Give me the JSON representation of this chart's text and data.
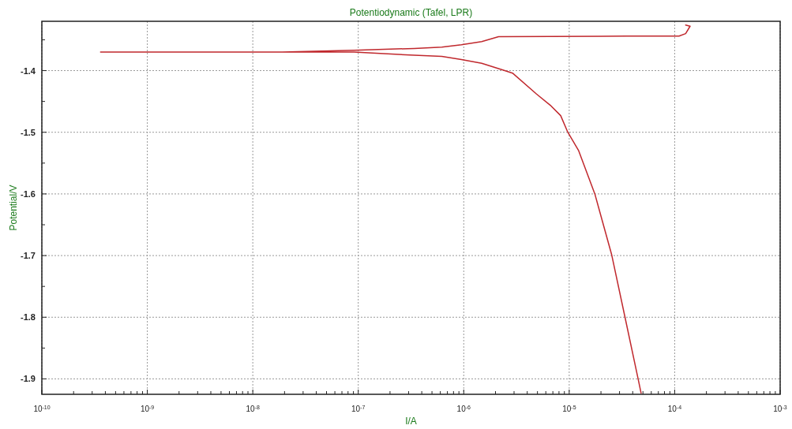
{
  "chart_data": {
    "type": "line",
    "title": "Potentiodynamic (Tafel, LPR)",
    "xlabel": "I/A",
    "ylabel": "Potential/V",
    "log": "x",
    "grid": true,
    "marker": "none",
    "line_style": "solid",
    "xlim": [
      1e-10,
      0.001
    ],
    "ylim": [
      -1.925,
      -1.32
    ],
    "xticks": [
      {
        "value": 1e-10,
        "label": "10$^{-10}$"
      },
      {
        "value": 2e-10,
        "label": null
      },
      {
        "value": 3e-10,
        "label": null
      },
      {
        "value": 4e-10,
        "label": null
      },
      {
        "value": 5e-10,
        "label": null
      },
      {
        "value": 6e-10,
        "label": null
      },
      {
        "value": 7e-10,
        "label": null
      },
      {
        "value": 8e-10,
        "label": null
      },
      {
        "value": 9e-10,
        "label": null
      },
      {
        "value": 1e-09,
        "label": "10$^{-9}$"
      },
      {
        "value": 2e-09,
        "label": null
      },
      {
        "value": 3e-09,
        "label": null
      },
      {
        "value": 4e-09,
        "label": null
      },
      {
        "value": 5e-09,
        "label": null
      },
      {
        "value": 6e-09,
        "label": null
      },
      {
        "value": 7e-09,
        "label": null
      },
      {
        "value": 8e-09,
        "label": null
      },
      {
        "value": 9e-09,
        "label": null
      },
      {
        "value": 1e-08,
        "label": "10$^{-8}$"
      },
      {
        "value": 2e-08,
        "label": null
      },
      {
        "value": 3e-08,
        "label": null
      },
      {
        "value": 4e-08,
        "label": null
      },
      {
        "value": 5e-08,
        "label": null
      },
      {
        "value": 6e-08,
        "label": null
      },
      {
        "value": 7e-08,
        "label": null
      },
      {
        "value": 8e-08,
        "label": null
      },
      {
        "value": 9e-08,
        "label": null
      },
      {
        "value": 1e-07,
        "label": "10$^{-7}$"
      },
      {
        "value": 2e-07,
        "label": null
      },
      {
        "value": 3e-07,
        "label": null
      },
      {
        "value": 4e-07,
        "label": null
      },
      {
        "value": 5e-07,
        "label": null
      },
      {
        "value": 6e-07,
        "label": null
      },
      {
        "value": 7e-07,
        "label": null
      },
      {
        "value": 8e-07,
        "label": null
      },
      {
        "value": 9e-07,
        "label": null
      },
      {
        "value": 1e-06,
        "label": "10$^{-6}$"
      },
      {
        "value": 2e-06,
        "label": null
      },
      {
        "value": 3e-06,
        "label": null
      },
      {
        "value": 4e-06,
        "label": null
      },
      {
        "value": 5e-06,
        "label": null
      },
      {
        "value": 6e-06,
        "label": null
      },
      {
        "value": 7e-06,
        "label": null
      },
      {
        "value": 8e-06,
        "label": null
      },
      {
        "value": 9e-06,
        "label": null
      },
      {
        "value": 1e-05,
        "label": "10$^{-5}$"
      },
      {
        "value": 2e-05,
        "label": null
      },
      {
        "value": 3e-05,
        "label": null
      },
      {
        "value": 4e-05,
        "label": null
      },
      {
        "value": 5e-05,
        "label": null
      },
      {
        "value": 6e-05,
        "label": null
      },
      {
        "value": 7e-05,
        "label": null
      },
      {
        "value": 8e-05,
        "label": null
      },
      {
        "value": 9e-05,
        "label": null
      },
      {
        "value": 0.0001,
        "label": "10$^{-4}$"
      },
      {
        "value": 0.0002,
        "label": null
      },
      {
        "value": 0.0003,
        "label": null
      },
      {
        "value": 0.0004,
        "label": null
      },
      {
        "value": 0.0005,
        "label": null
      },
      {
        "value": 0.0006,
        "label": null
      },
      {
        "value": 0.0007,
        "label": null
      },
      {
        "value": 0.0008,
        "label": null
      },
      {
        "value": 0.0009,
        "label": null
      },
      {
        "value": 0.001,
        "label": "10$^{-3}$"
      }
    ],
    "yticks": [
      {
        "value": -1.35,
        "label": null
      },
      -1.4,
      {
        "value": -1.45,
        "label": null
      },
      -1.5,
      {
        "value": -1.55,
        "label": null
      },
      -1.6,
      {
        "value": -1.65,
        "label": null
      },
      -1.7,
      {
        "value": -1.75,
        "label": null
      },
      -1.8,
      {
        "value": -1.85,
        "label": null
      },
      -1.9
    ],
    "series": [
      {
        "color": "#c0282d",
        "x": [
          4.8e-05,
          4.5e-05,
          3.38e-05,
          2.53e-05,
          1.75e-05,
          1.23e-05,
          9.7e-06,
          8.3e-06,
          6.6e-06,
          4.9e-06,
          2.9e-06,
          2.35e-06,
          1.48e-06,
          9.5e-07,
          6.2e-07,
          3.4e-07,
          9.1e-08,
          1.9e-08,
          3.6e-10,
          1.9e-08,
          9.1e-08,
          3.4e-07,
          6.2e-07,
          9.5e-07,
          1.48e-06,
          2.14e-06,
          3.5e-05,
          0.00011,
          0.000127,
          0.00014,
          0.000127
        ],
        "values": [
          -1.923,
          -1.9,
          -1.8,
          -1.699,
          -1.6,
          -1.53,
          -1.5,
          -1.473,
          -1.456,
          -1.438,
          -1.404,
          -1.399,
          -1.388,
          -1.382,
          -1.377,
          -1.375,
          -1.37,
          -1.37,
          -1.37,
          -1.37,
          -1.367,
          -1.364,
          -1.362,
          -1.358,
          -1.353,
          -1.345,
          -1.344,
          -1.344,
          -1.34,
          -1.328,
          -1.326
        ]
      }
    ]
  }
}
